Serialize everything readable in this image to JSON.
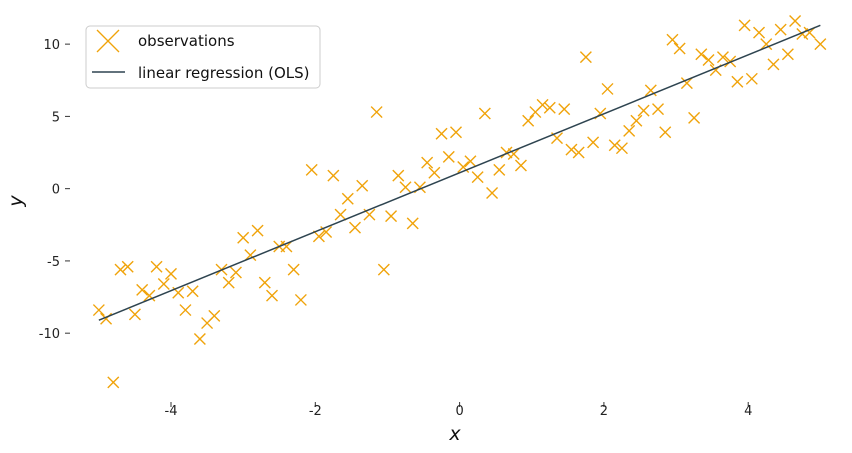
{
  "chart_data": {
    "type": "scatter",
    "xlabel": "x",
    "ylabel": "y",
    "xlim": [
      -5.4,
      5.3
    ],
    "ylim": [
      -14.9,
      12.5
    ],
    "x_ticks": [
      -4,
      -2,
      0,
      2,
      4
    ],
    "y_ticks": [
      -10,
      -5,
      0,
      5,
      10
    ],
    "x_tick_labels": [
      "-4",
      "-2",
      "0",
      "2",
      "4"
    ],
    "y_tick_labels": [
      "-10",
      "-5",
      "0",
      "5",
      "10"
    ],
    "grid": false,
    "legend": {
      "placement": "top-left",
      "entries": [
        "observations",
        "linear regression (OLS)"
      ]
    },
    "colors": {
      "observations": "#f0a30a",
      "regression": "#2e4450"
    },
    "series": [
      {
        "name": "observations",
        "kind": "scatter",
        "marker": "x",
        "points": [
          [
            -5.0,
            -8.4
          ],
          [
            -4.9,
            -9.0
          ],
          [
            -4.8,
            -13.4
          ],
          [
            -4.7,
            -5.6
          ],
          [
            -4.6,
            -5.4
          ],
          [
            -4.5,
            -8.7
          ],
          [
            -4.4,
            -7.0
          ],
          [
            -4.3,
            -7.4
          ],
          [
            -4.2,
            -5.4
          ],
          [
            -4.1,
            -6.6
          ],
          [
            -4.0,
            -5.9
          ],
          [
            -3.9,
            -7.2
          ],
          [
            -3.8,
            -8.4
          ],
          [
            -3.7,
            -7.1
          ],
          [
            -3.6,
            -10.4
          ],
          [
            -3.5,
            -9.3
          ],
          [
            -3.4,
            -8.8
          ],
          [
            -3.3,
            -5.6
          ],
          [
            -3.2,
            -6.5
          ],
          [
            -3.1,
            -5.8
          ],
          [
            -3.0,
            -3.4
          ],
          [
            -2.9,
            -4.6
          ],
          [
            -2.8,
            -2.9
          ],
          [
            -2.7,
            -6.5
          ],
          [
            -2.6,
            -7.4
          ],
          [
            -2.5,
            -4.0
          ],
          [
            -2.4,
            -4.0
          ],
          [
            -2.3,
            -5.6
          ],
          [
            -2.2,
            -7.7
          ],
          [
            -2.05,
            1.3
          ],
          [
            -1.95,
            -3.3
          ],
          [
            -1.85,
            -3.0
          ],
          [
            -1.75,
            0.9
          ],
          [
            -1.65,
            -1.8
          ],
          [
            -1.55,
            -0.7
          ],
          [
            -1.45,
            -2.7
          ],
          [
            -1.35,
            0.2
          ],
          [
            -1.25,
            -1.8
          ],
          [
            -1.15,
            5.3
          ],
          [
            -1.05,
            -5.6
          ],
          [
            -0.95,
            -1.9
          ],
          [
            -0.85,
            0.9
          ],
          [
            -0.75,
            0.1
          ],
          [
            -0.65,
            -2.4
          ],
          [
            -0.55,
            0.1
          ],
          [
            -0.45,
            1.8
          ],
          [
            -0.35,
            1.1
          ],
          [
            -0.25,
            3.8
          ],
          [
            -0.15,
            2.2
          ],
          [
            -0.05,
            3.9
          ],
          [
            0.05,
            1.5
          ],
          [
            0.15,
            1.9
          ],
          [
            0.25,
            0.8
          ],
          [
            0.35,
            5.2
          ],
          [
            0.45,
            -0.3
          ],
          [
            0.55,
            1.3
          ],
          [
            0.65,
            2.5
          ],
          [
            0.75,
            2.4
          ],
          [
            0.85,
            1.6
          ],
          [
            0.95,
            4.7
          ],
          [
            1.05,
            5.3
          ],
          [
            1.15,
            5.8
          ],
          [
            1.25,
            5.6
          ],
          [
            1.35,
            3.5
          ],
          [
            1.45,
            5.5
          ],
          [
            1.55,
            2.7
          ],
          [
            1.65,
            2.5
          ],
          [
            1.75,
            9.1
          ],
          [
            1.85,
            3.2
          ],
          [
            1.95,
            5.2
          ],
          [
            2.05,
            6.9
          ],
          [
            2.15,
            3.0
          ],
          [
            2.25,
            2.8
          ],
          [
            2.35,
            4.0
          ],
          [
            2.45,
            4.7
          ],
          [
            2.55,
            5.4
          ],
          [
            2.65,
            6.8
          ],
          [
            2.75,
            5.5
          ],
          [
            2.85,
            3.9
          ],
          [
            2.95,
            10.3
          ],
          [
            3.05,
            9.7
          ],
          [
            3.15,
            7.3
          ],
          [
            3.25,
            4.9
          ],
          [
            3.35,
            9.3
          ],
          [
            3.45,
            8.9
          ],
          [
            3.55,
            8.2
          ],
          [
            3.65,
            9.1
          ],
          [
            3.75,
            8.8
          ],
          [
            3.85,
            7.4
          ],
          [
            3.95,
            11.3
          ],
          [
            4.05,
            7.6
          ],
          [
            4.15,
            10.8
          ],
          [
            4.25,
            10.0
          ],
          [
            4.35,
            8.6
          ],
          [
            4.45,
            11.0
          ],
          [
            4.55,
            9.3
          ],
          [
            4.65,
            11.6
          ],
          [
            4.75,
            10.7
          ],
          [
            4.85,
            10.8
          ],
          [
            5.0,
            10.0
          ]
        ]
      },
      {
        "name": "linear regression (OLS)",
        "kind": "line",
        "points": [
          [
            -5.0,
            -9.1
          ],
          [
            5.0,
            11.3
          ]
        ]
      }
    ]
  }
}
